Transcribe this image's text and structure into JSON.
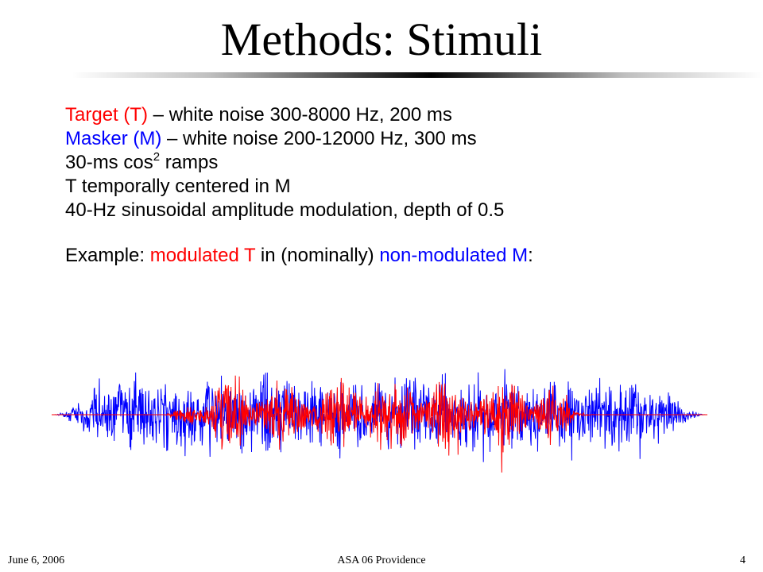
{
  "slide": {
    "title": "Methods: Stimuli",
    "lines": {
      "target": {
        "label": "Target (T)",
        "text": " – white noise 300-8000 Hz, 200 ms"
      },
      "masker": {
        "label": "Masker (M)",
        "text": " – white noise 200-12000 Hz, 300 ms"
      },
      "ramps": {
        "text": "30-ms cos",
        "sup": "2",
        "text_after": " ramps"
      },
      "centered": {
        "text": "T temporally centered in M"
      },
      "am": {
        "text": "40-Hz sinusoidal amplitude modulation, depth of 0.5"
      },
      "example": {
        "prefix": "Example: ",
        "target_part": "modulated T",
        "middle": " in (nominally) ",
        "masker_part": "non-modulated M",
        "suffix": ":"
      }
    },
    "waveform": {
      "masker_color": "#0000ff",
      "target_color": "#ff0000",
      "masker": {
        "duration_ms": 300,
        "band_hz": [
          200,
          12000
        ],
        "ramp_ms": 30,
        "modulated": false
      },
      "target": {
        "duration_ms": 200,
        "band_hz": [
          300,
          8000
        ],
        "ramp_ms": 30,
        "modulated": true,
        "am_rate_hz": 40,
        "am_depth": 0.5
      }
    },
    "footer": {
      "date": "June 6, 2006",
      "event": "ASA 06 Providence",
      "page": "4"
    }
  }
}
